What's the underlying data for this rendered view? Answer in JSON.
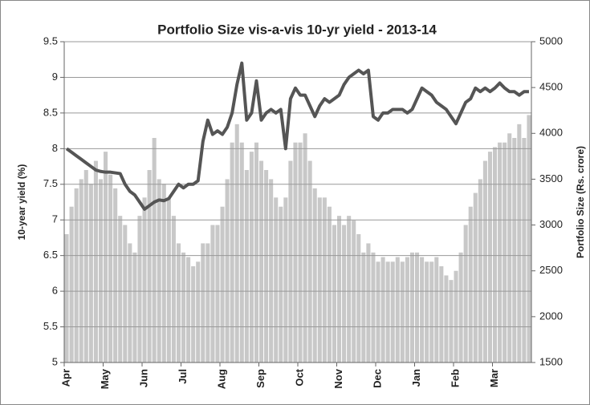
{
  "chart_data": {
    "type": "bar-line",
    "title": "Portfolio Size vis-a-vis 10-yr yield - 2013-14",
    "y_label": "10-year yield (%)",
    "y2_label": "Portfolio Size (Rs. crore)",
    "categories": [
      "Apr",
      null,
      null,
      null,
      null,
      null,
      null,
      null,
      "May",
      null,
      null,
      null,
      null,
      null,
      null,
      null,
      "Jun",
      null,
      null,
      null,
      null,
      null,
      null,
      null,
      "Jul",
      null,
      null,
      null,
      null,
      null,
      null,
      null,
      "Aug",
      null,
      null,
      null,
      null,
      null,
      null,
      null,
      "Sep",
      null,
      null,
      null,
      null,
      null,
      null,
      null,
      "Oct",
      null,
      null,
      null,
      null,
      null,
      null,
      null,
      "Nov",
      null,
      null,
      null,
      null,
      null,
      null,
      null,
      "Dec",
      null,
      null,
      null,
      null,
      null,
      null,
      null,
      "Jan",
      null,
      null,
      null,
      null,
      null,
      null,
      null,
      "Feb",
      null,
      null,
      null,
      null,
      null,
      null,
      null,
      "Mar",
      null,
      null,
      null,
      null,
      null,
      null,
      null
    ],
    "series": [
      {
        "name": "Portfolio Size",
        "type": "bar",
        "axis": "y2",
        "color": "#c8c8c8",
        "values": [
          2900,
          3200,
          3400,
          3500,
          3600,
          3450,
          3700,
          3500,
          3800,
          3550,
          3400,
          3100,
          3000,
          2800,
          2700,
          3100,
          3300,
          3600,
          3950,
          3500,
          3450,
          3300,
          3100,
          2800,
          2700,
          2650,
          2550,
          2600,
          2800,
          2800,
          3000,
          3000,
          3200,
          3500,
          3900,
          4100,
          3900,
          3600,
          3800,
          3900,
          3700,
          3600,
          3500,
          3300,
          3200,
          3300,
          3700,
          3900,
          3900,
          4000,
          3700,
          3400,
          3300,
          3300,
          3200,
          3000,
          3100,
          3000,
          3100,
          3050,
          2900,
          2700,
          2800,
          2700,
          2600,
          2650,
          2600,
          2600,
          2650,
          2600,
          2650,
          2700,
          2700,
          2650,
          2600,
          2600,
          2650,
          2550,
          2450,
          2400,
          2500,
          2700,
          3000,
          3200,
          3350,
          3500,
          3700,
          3800,
          3850,
          3900,
          3900,
          4000,
          3950,
          4100,
          3950,
          4200
        ]
      },
      {
        "name": "10-year yield",
        "type": "line",
        "color": "#555555",
        "values": [
          8.0,
          7.95,
          7.9,
          7.85,
          7.8,
          7.75,
          7.7,
          7.68,
          7.67,
          7.67,
          7.66,
          7.65,
          7.5,
          7.4,
          7.35,
          7.25,
          7.15,
          7.2,
          7.25,
          7.28,
          7.27,
          7.3,
          7.4,
          7.5,
          7.45,
          7.5,
          7.5,
          7.55,
          8.1,
          8.4,
          8.2,
          8.25,
          8.2,
          8.3,
          8.5,
          8.9,
          9.2,
          8.4,
          8.5,
          8.95,
          8.4,
          8.5,
          8.55,
          8.5,
          8.55,
          8.0,
          8.7,
          8.85,
          8.75,
          8.75,
          8.6,
          8.45,
          8.6,
          8.7,
          8.65,
          8.7,
          8.75,
          8.9,
          9.0,
          9.05,
          9.1,
          9.05,
          9.1,
          8.45,
          8.4,
          8.5,
          8.5,
          8.55,
          8.55,
          8.55,
          8.5,
          8.55,
          8.7,
          8.85,
          8.8,
          8.75,
          8.65,
          8.6,
          8.55,
          8.45,
          8.35,
          8.5,
          8.65,
          8.7,
          8.85,
          8.8,
          8.85,
          8.8,
          8.85,
          8.92,
          8.85,
          8.8,
          8.8,
          8.75,
          8.8,
          8.8
        ]
      }
    ],
    "ylim": [
      5,
      9.5
    ],
    "yticks": [
      5,
      5.5,
      6,
      6.5,
      7,
      7.5,
      8,
      8.5,
      9,
      9.5
    ],
    "y2lim": [
      1500,
      5000
    ],
    "y2ticks": [
      1500,
      2000,
      2500,
      3000,
      3500,
      4000,
      4500,
      5000
    ],
    "grid": true
  }
}
